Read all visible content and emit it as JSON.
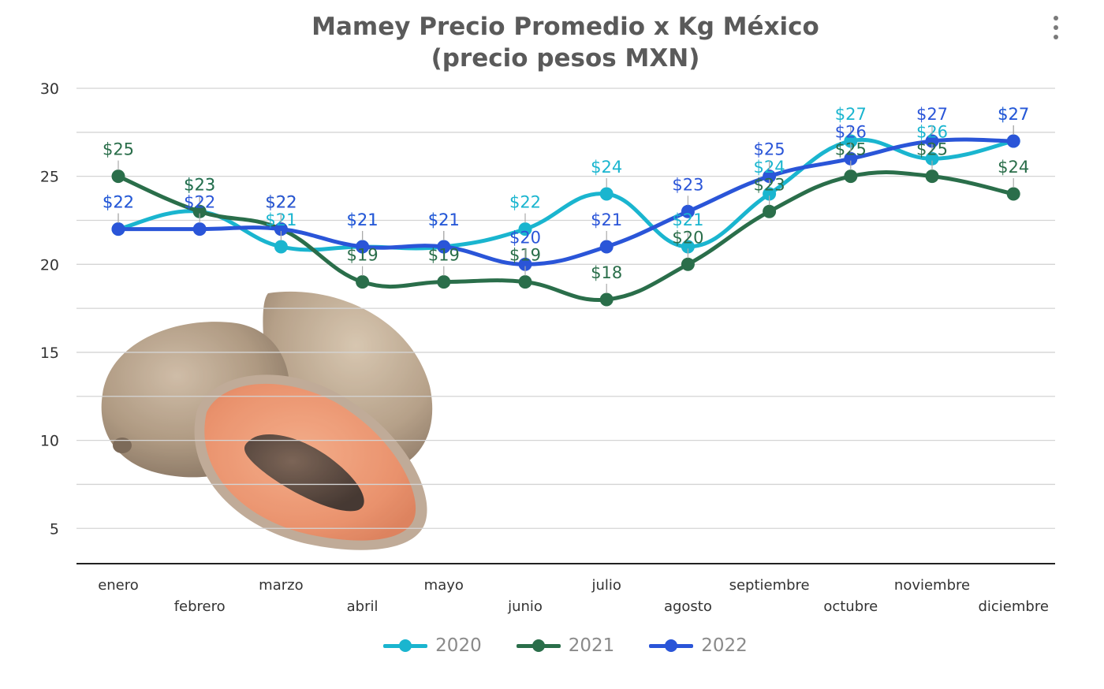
{
  "chart_data": {
    "type": "line",
    "title": [
      "Mamey Precio Promedio x Kg México",
      "(precio pesos MXN)"
    ],
    "xlabel": "",
    "ylabel": "",
    "categories": [
      "enero",
      "febrero",
      "marzo",
      "abril",
      "mayo",
      "junio",
      "julio",
      "agosto",
      "septiembre",
      "octubre",
      "noviembre",
      "diciembre"
    ],
    "ylim": [
      3,
      30
    ],
    "yticks": [
      5,
      10,
      15,
      20,
      25,
      30
    ],
    "grid": true,
    "legend_position": "bottom",
    "value_prefix": "$",
    "series": [
      {
        "name": "2020",
        "color": "#1ab5cf",
        "values": [
          22,
          23,
          21,
          21,
          21,
          22,
          24,
          21,
          24,
          27,
          26,
          27
        ]
      },
      {
        "name": "2021",
        "color": "#2a6e4a",
        "values": [
          25,
          23,
          22,
          19,
          19,
          19,
          18,
          20,
          23,
          25,
          25,
          24
        ]
      },
      {
        "name": "2022",
        "color": "#2a55d8",
        "values": [
          22,
          22,
          22,
          21,
          21,
          20,
          21,
          23,
          25,
          26,
          27,
          27
        ]
      }
    ]
  },
  "decoration": {
    "image_icon": "mamey-fruit-illustration"
  },
  "menu": {
    "icon": "more-vertical-icon"
  }
}
